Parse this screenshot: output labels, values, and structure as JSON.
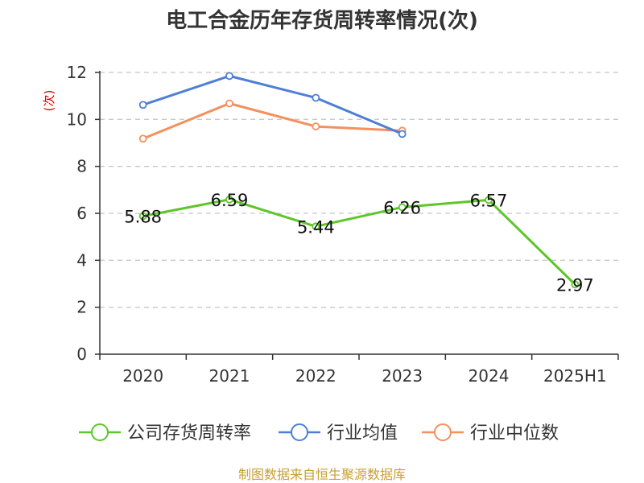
{
  "chart_data": {
    "type": "line",
    "title": "电工合金历年存货周转率情况(次)",
    "ylabel": "(次)",
    "categories": [
      "2020",
      "2021",
      "2022",
      "2023",
      "2024",
      "2025H1"
    ],
    "ylim": [
      0,
      12
    ],
    "yticks": [
      0,
      2,
      4,
      6,
      8,
      10,
      12
    ],
    "grid": true,
    "legend_position": "bottom",
    "series": [
      {
        "name": "公司存货周转率",
        "color": "#5ec62a",
        "values": [
          5.88,
          6.59,
          5.44,
          6.26,
          6.57,
          2.97
        ],
        "labels": [
          "5.88",
          "6.59",
          "5.44",
          "6.26",
          "6.57",
          "2.97"
        ]
      },
      {
        "name": "行业均值",
        "color": "#4e7fd6",
        "values": [
          10.62,
          11.85,
          10.92,
          9.38,
          null,
          null
        ]
      },
      {
        "name": "行业中位数",
        "color": "#f4905e",
        "values": [
          9.18,
          10.68,
          9.7,
          9.52,
          null,
          null
        ]
      }
    ]
  },
  "source": "制图数据来自恒生聚源数据库"
}
